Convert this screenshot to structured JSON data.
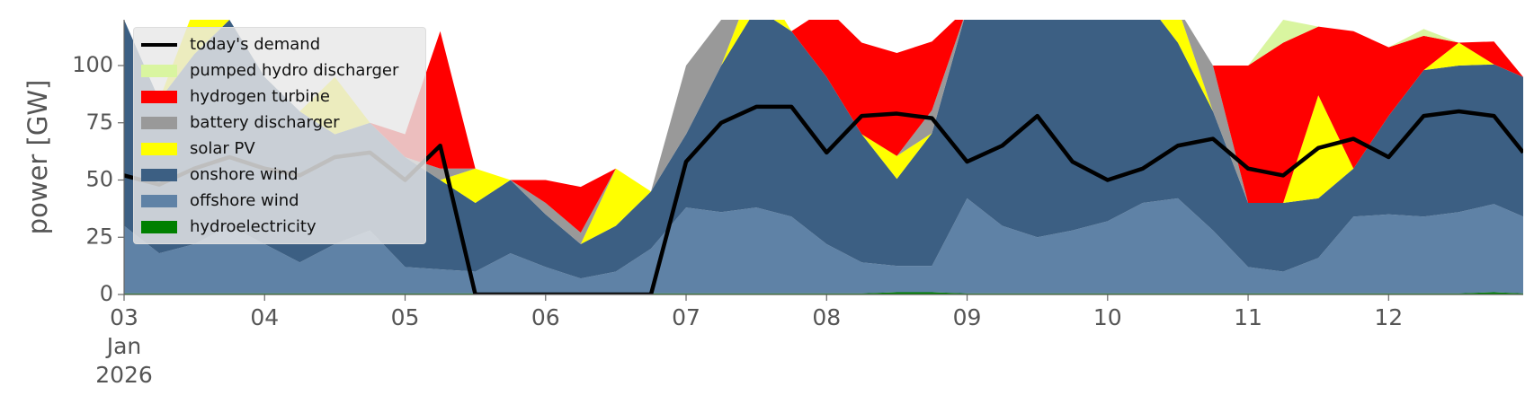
{
  "chart_data": {
    "type": "area",
    "ylabel": "power [GW]",
    "x": [
      3,
      3.25,
      3.5,
      3.75,
      4,
      4.25,
      4.5,
      4.75,
      5,
      5.25,
      5.5,
      5.75,
      6,
      6.25,
      6.5,
      6.75,
      7,
      7.25,
      7.5,
      7.75,
      8,
      8.25,
      8.5,
      8.75,
      9,
      9.25,
      9.5,
      9.75,
      10,
      10.25,
      10.5,
      10.75,
      11,
      11.25,
      11.5,
      11.75,
      12,
      12.25,
      12.5,
      12.75,
      12.958
    ],
    "xlim": [
      3,
      12.958
    ],
    "xticks": [
      {
        "value": 3,
        "label": "03\nJan\n2026"
      },
      {
        "value": 4,
        "label": "04"
      },
      {
        "value": 5,
        "label": "05"
      },
      {
        "value": 6,
        "label": "06"
      },
      {
        "value": 7,
        "label": "07"
      },
      {
        "value": 8,
        "label": "08"
      },
      {
        "value": 9,
        "label": "09"
      },
      {
        "value": 10,
        "label": "10"
      },
      {
        "value": 11,
        "label": "11"
      },
      {
        "value": 12,
        "label": "12"
      }
    ],
    "ylim": [
      0,
      120
    ],
    "yticks": [
      0,
      25,
      50,
      75,
      100
    ],
    "series": [
      {
        "name": "today's demand",
        "style": "line",
        "color": "#000000",
        "values": [
          52,
          48,
          55,
          60,
          55,
          52,
          60,
          62,
          50,
          65,
          0,
          0,
          0,
          0,
          0,
          0,
          58,
          75,
          82,
          82,
          62,
          78,
          79,
          77,
          58,
          65,
          78,
          58,
          50,
          55,
          65,
          68,
          55,
          52,
          64,
          68,
          60,
          78,
          80,
          78,
          62
        ]
      },
      {
        "name": "pumped hydro discharger",
        "style": "area",
        "color": "#d9f5a0",
        "values": [
          0,
          0,
          0,
          0,
          0,
          0,
          0,
          0,
          0,
          0,
          0,
          0,
          0,
          0,
          0,
          0,
          0,
          0,
          0,
          0,
          0,
          0,
          0,
          0,
          0,
          0,
          0,
          0,
          0,
          0,
          0,
          0,
          0,
          10,
          0,
          0,
          0,
          3,
          0,
          0,
          0
        ]
      },
      {
        "name": "hydrogen turbine",
        "style": "area",
        "color": "#ff0000",
        "values": [
          0,
          0,
          0,
          0,
          0,
          0,
          0,
          0,
          10,
          60,
          0,
          0,
          10,
          20,
          0,
          0,
          0,
          0,
          0,
          0,
          30,
          40,
          45,
          30,
          0,
          0,
          0,
          0,
          0,
          0,
          0,
          0,
          60,
          70,
          30,
          60,
          30,
          15,
          0,
          10,
          0
        ]
      },
      {
        "name": "battery discharger",
        "style": "area",
        "color": "#999999",
        "values": [
          0,
          0,
          0,
          0,
          0,
          0,
          0,
          0,
          0,
          5,
          0,
          0,
          5,
          5,
          0,
          0,
          30,
          20,
          0,
          0,
          0,
          0,
          0,
          10,
          0,
          0,
          0,
          0,
          0,
          0,
          0,
          20,
          0,
          0,
          0,
          0,
          0,
          0,
          0,
          0,
          0
        ]
      },
      {
        "name": "solar PV",
        "style": "area",
        "color": "#ffff00",
        "values": [
          0,
          0,
          20,
          0,
          0,
          0,
          25,
          0,
          0,
          0,
          15,
          0,
          0,
          0,
          25,
          0,
          0,
          0,
          15,
          0,
          0,
          0,
          10,
          0,
          0,
          0,
          0,
          0,
          0,
          0,
          15,
          0,
          0,
          0,
          45,
          0,
          0,
          0,
          10,
          0,
          0
        ]
      },
      {
        "name": "onshore wind",
        "style": "area",
        "color": "#3c5f83",
        "values": [
          90,
          67,
          83,
          90,
          73,
          66,
          48,
          47,
          48,
          39,
          30,
          32,
          23,
          15,
          20,
          25,
          32,
          64,
          87,
          81,
          73,
          56,
          38,
          58,
          83,
          100,
          105,
          102,
          98,
          90,
          68,
          52,
          28,
          30,
          26,
          21,
          43,
          64,
          64,
          61,
          61
        ]
      },
      {
        "name": "offshore wind",
        "style": "area",
        "color": "#5f82a6",
        "values": [
          29.5,
          17.5,
          21.5,
          29.5,
          21.5,
          13.5,
          21.5,
          27.5,
          11.5,
          10.5,
          9.5,
          17.5,
          11.5,
          6.5,
          9.5,
          19.5,
          37.5,
          35.5,
          37.5,
          33.5,
          21.5,
          13.5,
          11.5,
          11.5,
          41.5,
          29.5,
          24.5,
          27.5,
          31.5,
          39.5,
          41.5,
          27.5,
          11.5,
          9.5,
          15.5,
          33.5,
          34.5,
          33.5,
          35.5,
          38.5,
          33.5
        ]
      },
      {
        "name": "hydroelectricity",
        "style": "area",
        "color": "#008000",
        "values": [
          0.5,
          0.5,
          0.5,
          0.5,
          0.5,
          0.5,
          0.5,
          0.5,
          0.5,
          0.5,
          0.5,
          0.5,
          0.5,
          0.5,
          0.5,
          0.5,
          0.5,
          0.5,
          0.5,
          0.5,
          0.5,
          0.5,
          1,
          1,
          0.5,
          0.5,
          0.5,
          0.5,
          0.5,
          0.5,
          0.5,
          0.5,
          0.5,
          0.5,
          0.5,
          0.5,
          0.5,
          0.5,
          0.5,
          1,
          0.5
        ]
      }
    ]
  }
}
